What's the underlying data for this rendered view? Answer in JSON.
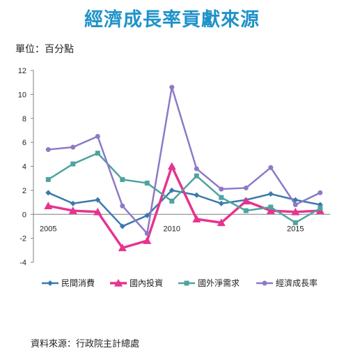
{
  "header": {
    "title": "經濟成長率貢獻來源",
    "unit": "單位：百分點"
  },
  "footer": {
    "source": "資料來源：行政院主計總處"
  },
  "colors": {
    "title": "#1f93c9",
    "series": [
      "#3a79ae",
      "#e5348f",
      "#4fa3a0",
      "#8d79c6"
    ]
  },
  "chart_data": {
    "type": "line",
    "x": [
      2005,
      2006,
      2007,
      2008,
      2009,
      2010,
      2011,
      2012,
      2013,
      2014,
      2015,
      2016
    ],
    "x_tick_labels": [
      "2005",
      "2010",
      "2015"
    ],
    "x_ticks": [
      2005,
      2010,
      2015
    ],
    "ylim": [
      -4,
      12
    ],
    "y_ticks": [
      -4,
      -2,
      0,
      2,
      4,
      6,
      8,
      10,
      12
    ],
    "grid": false,
    "legend_position": "bottom",
    "series": [
      {
        "name": "民間消費",
        "marker": "diamond",
        "values": [
          1.8,
          0.9,
          1.2,
          -1.0,
          -0.1,
          2.0,
          1.6,
          0.9,
          1.2,
          1.7,
          1.2,
          0.8
        ]
      },
      {
        "name": "國內投資",
        "marker": "triangle",
        "values": [
          0.7,
          0.3,
          0.2,
          -2.8,
          -2.2,
          4.0,
          -0.4,
          -0.7,
          1.1,
          0.3,
          0.2,
          0.3
        ]
      },
      {
        "name": "國外淨需求",
        "marker": "square",
        "values": [
          2.9,
          4.2,
          5.1,
          2.9,
          2.6,
          1.1,
          3.2,
          1.4,
          0.3,
          0.6,
          -0.7,
          0.5
        ]
      },
      {
        "name": "經濟成長率",
        "marker": "circle",
        "values": [
          5.4,
          5.6,
          6.5,
          0.7,
          -1.6,
          10.6,
          3.8,
          2.1,
          2.2,
          3.9,
          0.8,
          1.8
        ]
      }
    ]
  }
}
